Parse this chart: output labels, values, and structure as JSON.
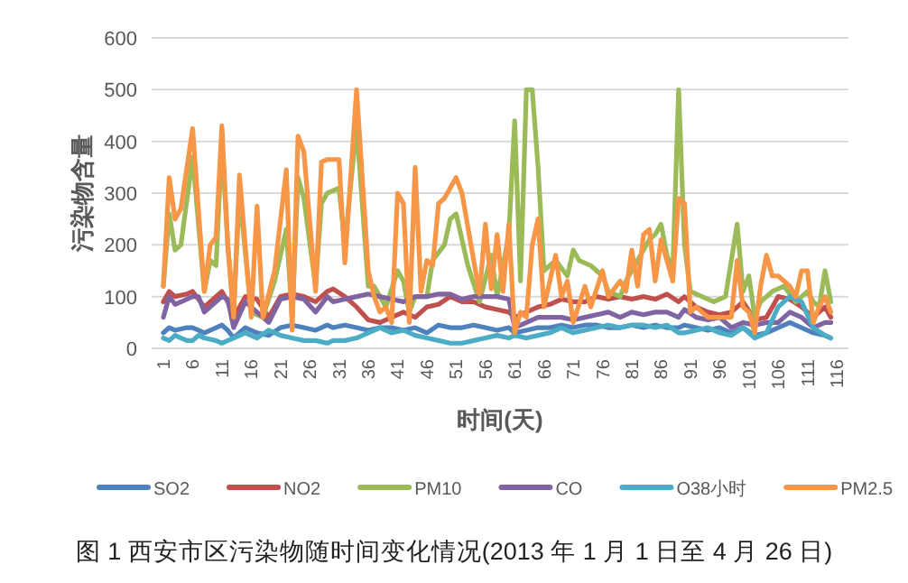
{
  "chart_data": {
    "type": "line",
    "title": "图 1 西安市区污染物随时间变化情况(2013 年 1 月 1 日至 4 月 26 日)",
    "xlabel": "时间(天)",
    "ylabel": "污染物含量",
    "xlim": [
      -1,
      118
    ],
    "xticks": [
      1,
      6,
      11,
      16,
      21,
      26,
      31,
      36,
      41,
      46,
      51,
      56,
      61,
      66,
      71,
      76,
      81,
      86,
      91,
      96,
      101,
      106,
      111,
      116
    ],
    "ylim": [
      0,
      600
    ],
    "yticks": [
      0,
      100,
      200,
      300,
      400,
      500,
      600
    ],
    "grid": "y",
    "legend": "bottom",
    "line_style": "solid",
    "marker": "none",
    "series": [
      {
        "name": "SO2",
        "color": "#4f81bd",
        "x": [
          1,
          2,
          3,
          5,
          6,
          7,
          8,
          10,
          11,
          12,
          13,
          15,
          17,
          19,
          21,
          23,
          25,
          27,
          29,
          30,
          32,
          34,
          36,
          38,
          40,
          42,
          44,
          46,
          48,
          50,
          52,
          54,
          56,
          58,
          60,
          61,
          63,
          65,
          67,
          69,
          71,
          73,
          75,
          77,
          79,
          81,
          83,
          85,
          87,
          89,
          90,
          92,
          94,
          96,
          98,
          100,
          102,
          104,
          106,
          108,
          110,
          112,
          114,
          115
        ],
        "values": [
          30,
          40,
          35,
          40,
          40,
          35,
          30,
          40,
          45,
          35,
          20,
          40,
          30,
          25,
          40,
          45,
          40,
          35,
          45,
          40,
          45,
          40,
          35,
          40,
          40,
          35,
          40,
          30,
          45,
          40,
          40,
          45,
          40,
          35,
          40,
          30,
          35,
          40,
          40,
          45,
          40,
          45,
          45,
          40,
          40,
          45,
          40,
          45,
          40,
          40,
          45,
          40,
          35,
          40,
          30,
          40,
          25,
          30,
          40,
          50,
          40,
          30,
          25,
          20
        ]
      },
      {
        "name": "NO2",
        "color": "#c0504d",
        "x": [
          1,
          2,
          3,
          5,
          6,
          7,
          8,
          10,
          11,
          12,
          13,
          15,
          17,
          19,
          21,
          23,
          25,
          27,
          29,
          30,
          32,
          34,
          36,
          38,
          40,
          42,
          44,
          46,
          48,
          50,
          52,
          54,
          56,
          58,
          60,
          61,
          63,
          65,
          67,
          69,
          71,
          73,
          75,
          77,
          79,
          81,
          83,
          85,
          87,
          89,
          90,
          92,
          94,
          96,
          98,
          100,
          102,
          104,
          106,
          108,
          110,
          112,
          114,
          115
        ],
        "values": [
          90,
          110,
          100,
          105,
          110,
          95,
          80,
          100,
          110,
          90,
          60,
          100,
          95,
          60,
          100,
          105,
          100,
          90,
          110,
          115,
          100,
          80,
          55,
          50,
          60,
          70,
          60,
          80,
          85,
          100,
          90,
          90,
          80,
          75,
          70,
          60,
          70,
          80,
          85,
          95,
          90,
          90,
          100,
          95,
          100,
          95,
          100,
          95,
          105,
          90,
          100,
          80,
          70,
          65,
          70,
          90,
          55,
          60,
          100,
          95,
          80,
          60,
          80,
          60
        ]
      },
      {
        "name": "PM10",
        "color": "#9bbb59",
        "x": [
          1,
          2,
          3,
          4,
          6,
          8,
          9,
          10,
          11,
          12,
          13,
          14,
          16,
          18,
          20,
          22,
          23,
          24,
          25,
          27,
          28,
          29,
          31,
          32,
          34,
          36,
          37,
          39,
          41,
          42,
          43,
          44,
          46,
          47,
          49,
          50,
          51,
          53,
          55,
          57,
          58,
          60,
          61,
          62,
          63,
          64,
          65,
          66,
          68,
          70,
          71,
          72,
          74,
          76,
          77,
          79,
          80,
          82,
          84,
          85,
          86,
          87,
          88,
          89,
          90,
          91,
          93,
          95,
          97,
          99,
          100,
          101,
          102,
          103,
          105,
          107,
          109,
          111,
          112,
          113,
          114,
          115
        ],
        "values": [
          120,
          260,
          190,
          200,
          370,
          110,
          170,
          160,
          400,
          200,
          70,
          300,
          70,
          60,
          130,
          230,
          60,
          330,
          290,
          120,
          280,
          300,
          310,
          200,
          430,
          120,
          120,
          80,
          150,
          130,
          70,
          100,
          100,
          170,
          200,
          250,
          260,
          160,
          90,
          180,
          100,
          220,
          440,
          130,
          500,
          500,
          350,
          150,
          170,
          140,
          190,
          170,
          160,
          140,
          110,
          100,
          130,
          170,
          210,
          220,
          240,
          180,
          150,
          500,
          200,
          110,
          100,
          90,
          100,
          240,
          110,
          140,
          60,
          90,
          110,
          120,
          90,
          110,
          90,
          80,
          150,
          90
        ]
      },
      {
        "name": "CO",
        "color": "#8064a2",
        "x": [
          1,
          2,
          3,
          5,
          6,
          7,
          8,
          10,
          11,
          12,
          13,
          15,
          17,
          19,
          21,
          23,
          25,
          27,
          29,
          30,
          32,
          34,
          36,
          38,
          40,
          42,
          44,
          46,
          48,
          50,
          52,
          54,
          56,
          58,
          60,
          61,
          63,
          65,
          67,
          69,
          71,
          73,
          75,
          77,
          79,
          81,
          83,
          85,
          87,
          89,
          90,
          92,
          94,
          96,
          98,
          100,
          102,
          104,
          106,
          108,
          110,
          112,
          114,
          115
        ],
        "values": [
          60,
          100,
          85,
          95,
          100,
          100,
          70,
          90,
          100,
          95,
          40,
          90,
          70,
          50,
          95,
          100,
          95,
          70,
          100,
          90,
          95,
          100,
          105,
          100,
          95,
          90,
          100,
          100,
          105,
          105,
          95,
          100,
          100,
          100,
          95,
          40,
          50,
          60,
          60,
          60,
          55,
          60,
          65,
          70,
          60,
          70,
          65,
          70,
          70,
          60,
          75,
          60,
          55,
          60,
          40,
          50,
          45,
          50,
          50,
          70,
          60,
          40,
          50,
          50
        ]
      },
      {
        "name": "O38小时",
        "color": "#4bacc6",
        "x": [
          1,
          2,
          3,
          5,
          6,
          7,
          8,
          10,
          11,
          12,
          13,
          15,
          17,
          19,
          21,
          23,
          25,
          27,
          29,
          30,
          32,
          34,
          36,
          38,
          40,
          42,
          44,
          46,
          48,
          50,
          52,
          54,
          56,
          58,
          60,
          61,
          63,
          65,
          67,
          69,
          71,
          73,
          75,
          77,
          79,
          81,
          83,
          85,
          87,
          89,
          90,
          92,
          94,
          96,
          98,
          100,
          102,
          104,
          106,
          108,
          110,
          112,
          114,
          115
        ],
        "values": [
          20,
          15,
          25,
          15,
          15,
          25,
          20,
          15,
          10,
          15,
          20,
          30,
          20,
          35,
          25,
          20,
          15,
          15,
          10,
          15,
          15,
          20,
          30,
          40,
          30,
          35,
          25,
          20,
          15,
          10,
          10,
          15,
          20,
          25,
          20,
          25,
          20,
          25,
          30,
          40,
          30,
          35,
          40,
          45,
          40,
          45,
          45,
          40,
          45,
          30,
          30,
          35,
          40,
          30,
          25,
          40,
          20,
          30,
          80,
          100,
          90,
          40,
          25,
          20
        ]
      },
      {
        "name": "PM2.5",
        "color": "#f79646",
        "x": [
          1,
          2,
          3,
          4,
          6,
          8,
          9,
          10,
          11,
          12,
          13,
          14,
          16,
          17,
          18,
          20,
          22,
          23,
          24,
          25,
          27,
          28,
          29,
          31,
          32,
          34,
          36,
          37,
          38,
          39,
          40,
          41,
          42,
          43,
          44,
          45,
          46,
          47,
          48,
          49,
          50,
          51,
          52,
          54,
          55,
          56,
          57,
          58,
          59,
          60,
          61,
          62,
          63,
          64,
          65,
          66,
          68,
          69,
          70,
          71,
          73,
          74,
          76,
          77,
          79,
          80,
          81,
          82,
          83,
          84,
          85,
          86,
          87,
          88,
          89,
          90,
          91,
          92,
          94,
          96,
          98,
          99,
          100,
          101,
          102,
          103,
          104,
          105,
          106,
          108,
          109,
          110,
          111,
          112,
          113,
          114,
          115
        ],
        "values": [
          120,
          330,
          250,
          270,
          425,
          110,
          200,
          215,
          430,
          200,
          60,
          335,
          60,
          275,
          60,
          150,
          345,
          35,
          410,
          380,
          110,
          360,
          365,
          365,
          165,
          500,
          150,
          100,
          70,
          80,
          50,
          300,
          280,
          50,
          350,
          110,
          170,
          160,
          280,
          290,
          310,
          330,
          300,
          170,
          105,
          240,
          115,
          220,
          110,
          240,
          30,
          70,
          60,
          200,
          250,
          80,
          180,
          100,
          130,
          50,
          120,
          80,
          150,
          100,
          130,
          110,
          190,
          120,
          220,
          230,
          130,
          210,
          170,
          130,
          290,
          280,
          70,
          80,
          60,
          60,
          60,
          170,
          80,
          70,
          30,
          120,
          180,
          140,
          140,
          120,
          100,
          150,
          150,
          50,
          80,
          100,
          70
        ]
      }
    ]
  }
}
